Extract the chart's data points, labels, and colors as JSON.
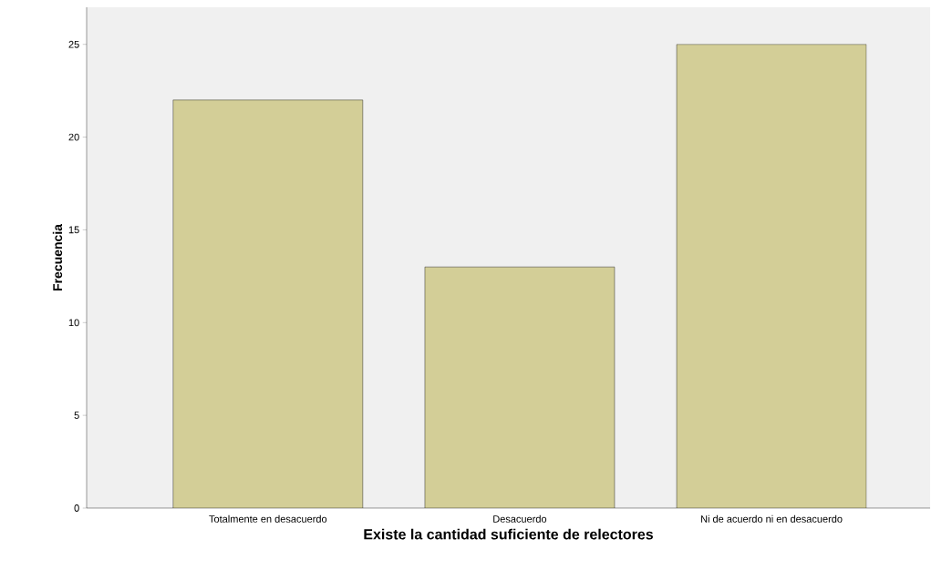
{
  "chart_data": {
    "type": "bar",
    "xlabel": "Existe la cantidad suficiente de relectores",
    "ylabel": "Frecuencia",
    "categories": [
      "Totalmente en desacuerdo",
      "Desacuerdo",
      "Ni de acuerdo ni en desacuerdo"
    ],
    "values": [
      22,
      13,
      25
    ],
    "color": "#d3ce97",
    "ylim": [
      0,
      27
    ],
    "yticks": [
      0,
      5,
      10,
      15,
      20,
      25
    ]
  }
}
